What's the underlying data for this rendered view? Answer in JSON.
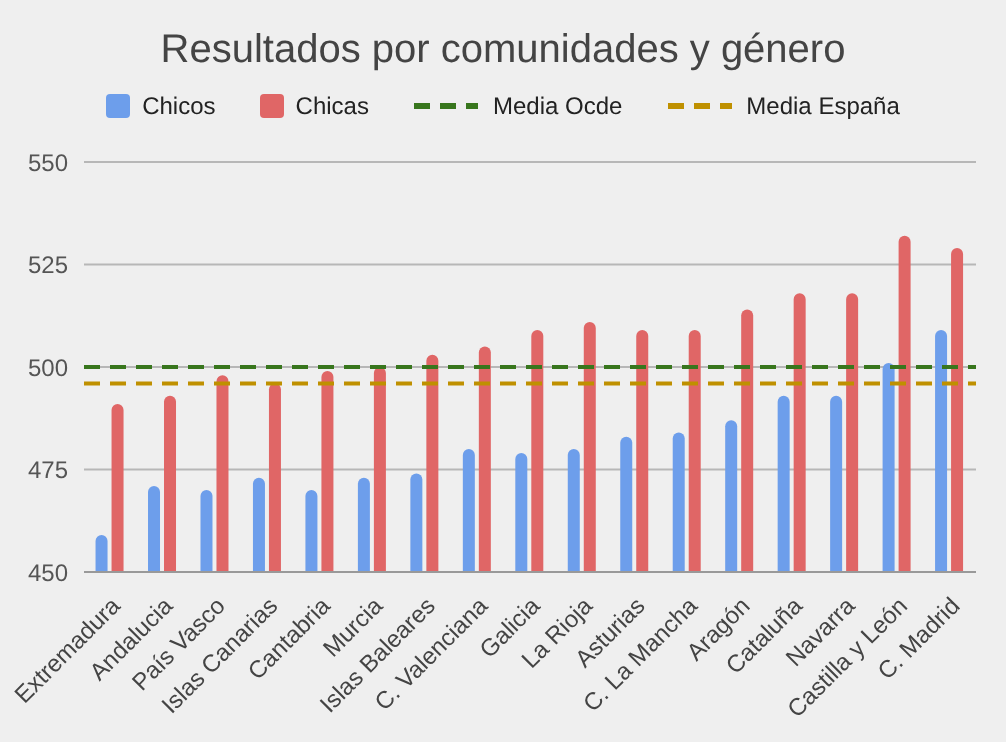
{
  "chart_data": {
    "type": "bar",
    "title": "Resultados por comunidades y género",
    "categories": [
      "Extremadura",
      "Andalucia",
      "País Vasco",
      "Islas Canarias",
      "Cantabria",
      "Murcia",
      "Islas Baleares",
      "C. Valenciana",
      "Galicia",
      "La Rioja",
      "Asturias",
      "C. La Mancha",
      "Aragón",
      "Cataluña",
      "Navarra",
      "Castilla y León",
      "C. Madrid"
    ],
    "series": [
      {
        "name": "Chicos",
        "color": "#6d9eeb",
        "values": [
          459,
          471,
          470,
          473,
          470,
          473,
          474,
          480,
          479,
          480,
          483,
          484,
          487,
          493,
          493,
          501,
          509
        ]
      },
      {
        "name": "Chicas",
        "color": "#e06666",
        "values": [
          491,
          493,
          498,
          496,
          499,
          500,
          503,
          505,
          509,
          511,
          509,
          509,
          514,
          518,
          518,
          532,
          529
        ]
      }
    ],
    "ref_lines": [
      {
        "axis": "y",
        "value": 500,
        "label": "Media Ocde",
        "color": "#38761d",
        "line_style": "dashed"
      },
      {
        "axis": "y",
        "value": 496,
        "label": "Media España",
        "color": "#bf9000",
        "line_style": "dashed"
      }
    ],
    "ylim": [
      450,
      550
    ],
    "yticks": [
      450,
      475,
      500,
      525,
      550
    ],
    "grid": "y",
    "legend": "top"
  }
}
